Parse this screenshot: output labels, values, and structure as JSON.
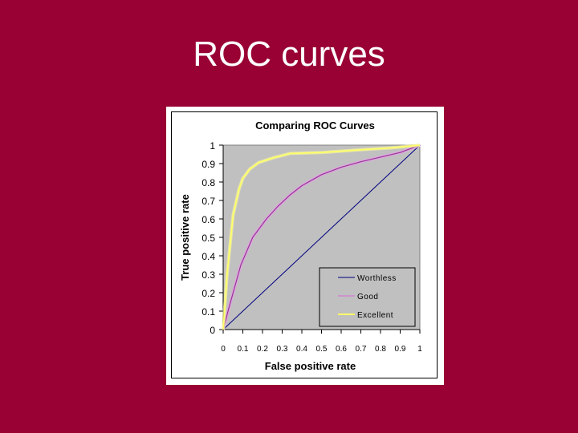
{
  "slide": {
    "title": "ROC curves",
    "background_color": "#990033"
  },
  "chart_data": {
    "type": "line",
    "title": "Comparing ROC Curves",
    "xlabel": "False positive rate",
    "ylabel": "True positive rate",
    "xlim": [
      0,
      1
    ],
    "ylim": [
      0,
      1
    ],
    "x_ticks": [
      "0",
      "0.1",
      "0.2",
      "0.3",
      "0.4",
      "0.5",
      "0.6",
      "0.7",
      "0.8",
      "0.9",
      "1"
    ],
    "y_ticks": [
      "0",
      "0.1",
      "0.2",
      "0.3",
      "0.4",
      "0.5",
      "0.6",
      "0.7",
      "0.8",
      "0.9",
      "1"
    ],
    "grid": false,
    "plot_background": "#c0c0c0",
    "legend_position": "lower right",
    "series": [
      {
        "name": "Worthless",
        "color": "#000080",
        "x": [
          0,
          0.1,
          0.2,
          0.3,
          0.4,
          0.5,
          0.6,
          0.7,
          0.8,
          0.9,
          1
        ],
        "y": [
          0,
          0.1,
          0.2,
          0.3,
          0.4,
          0.5,
          0.6,
          0.7,
          0.8,
          0.9,
          1
        ]
      },
      {
        "name": "Good",
        "color": "#cc33cc",
        "x": [
          0,
          0.03,
          0.09,
          0.15,
          0.22,
          0.28,
          0.34,
          0.4,
          0.5,
          0.6,
          0.7,
          0.8,
          0.9,
          1
        ],
        "y": [
          0,
          0.12,
          0.35,
          0.5,
          0.6,
          0.67,
          0.73,
          0.78,
          0.84,
          0.88,
          0.91,
          0.935,
          0.96,
          1
        ]
      },
      {
        "name": "Excellent",
        "color": "#ffff66",
        "x": [
          0,
          0.02,
          0.05,
          0.08,
          0.1,
          0.135,
          0.18,
          0.25,
          0.34,
          0.5,
          0.7,
          0.85,
          1
        ],
        "y": [
          0,
          0.3,
          0.62,
          0.76,
          0.82,
          0.87,
          0.905,
          0.93,
          0.955,
          0.96,
          0.975,
          0.985,
          1
        ]
      }
    ]
  }
}
